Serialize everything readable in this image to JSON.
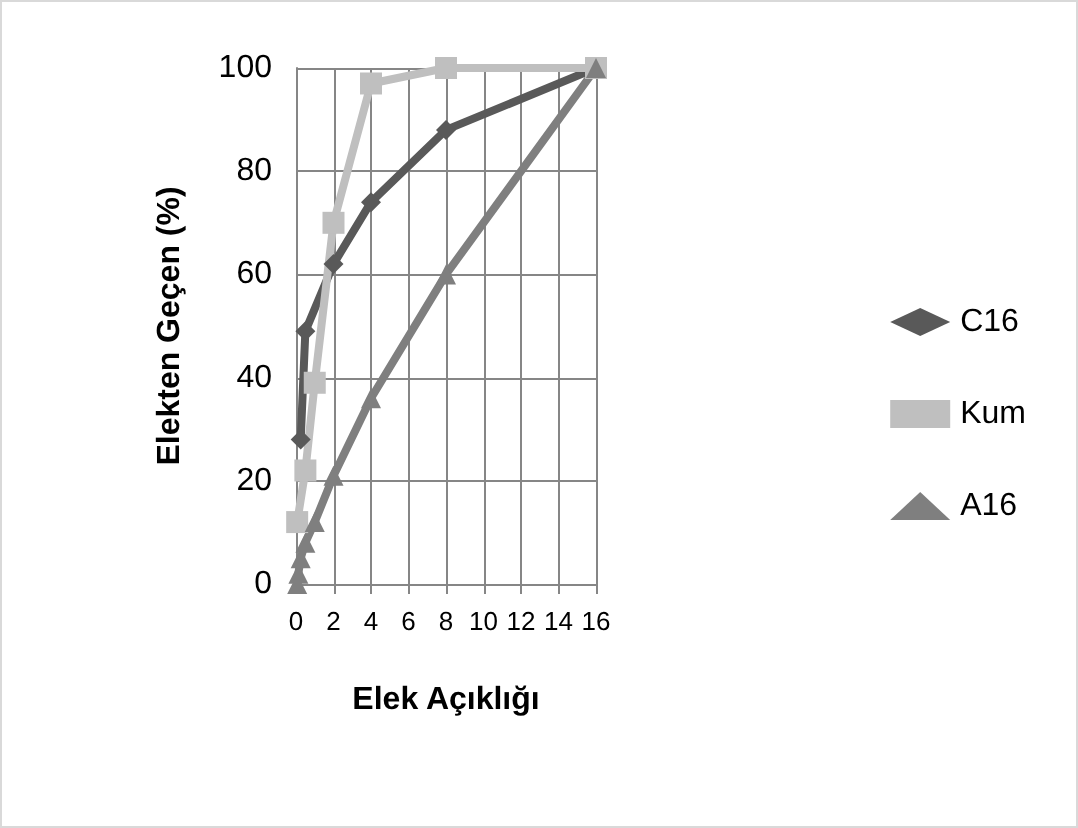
{
  "chart_data": {
    "type": "line",
    "xlabel": "Elek Açıklığı",
    "ylabel": "Elekten Geçen (%)",
    "xlim": [
      0,
      16
    ],
    "xticks": [
      0,
      2,
      4,
      6,
      8,
      10,
      12,
      14,
      16
    ],
    "ylim": [
      0,
      100
    ],
    "yticks": [
      0,
      20,
      40,
      60,
      80,
      100
    ],
    "grid": true,
    "legend": "right",
    "series": [
      {
        "name": "C16",
        "color": "#595959",
        "marker": "diamond",
        "x": [
          0.25,
          0.5,
          2,
          4,
          8,
          16
        ],
        "values": [
          28,
          49,
          62,
          74,
          88,
          100
        ]
      },
      {
        "name": "Kum",
        "color": "#bfbfbf",
        "marker": "square",
        "x": [
          0.063,
          0.5,
          1,
          2,
          4,
          8,
          16
        ],
        "values": [
          12,
          22,
          39,
          70,
          97,
          100,
          100
        ]
      },
      {
        "name": "A16",
        "color": "#7f7f7f",
        "marker": "triangle",
        "x": [
          0.063,
          0.125,
          0.25,
          0.5,
          1,
          2,
          4,
          8,
          16
        ],
        "values": [
          0,
          2,
          5,
          8,
          12,
          21,
          36,
          60,
          100
        ]
      }
    ]
  }
}
